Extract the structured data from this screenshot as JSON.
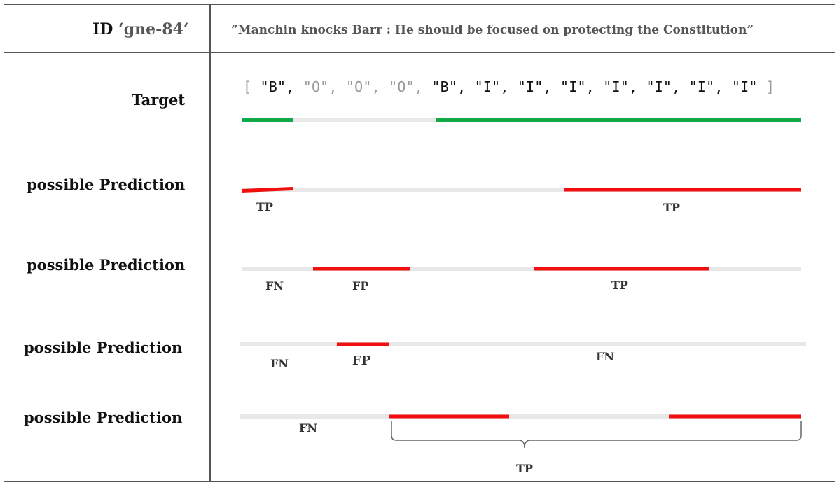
{
  "header": {
    "id_prefix": "ID ",
    "id_value": "‘gne-84‘",
    "sentence": "”Manchin knocks Barr : He should be focused on protecting the Constitution”"
  },
  "rows": {
    "target": {
      "label": "Target"
    },
    "prediction_1": {
      "label": "possible Prediction",
      "tags": [
        "TP",
        "TP"
      ]
    },
    "prediction_2": {
      "label": "possible Prediction",
      "tags": [
        "FN",
        "FP",
        "TP"
      ]
    },
    "prediction_3": {
      "label": "possible Prediction",
      "tags": [
        "FN",
        "FP",
        "FN"
      ]
    },
    "prediction_4": {
      "label": "possible Prediction",
      "tags": [
        "FN",
        "TP"
      ]
    }
  },
  "target_tags": {
    "open": "[ ",
    "close": " ]",
    "items": [
      "\"B\"",
      "\"O\"",
      "\"O\"",
      "\"O\"",
      "\"B\"",
      "\"I\"",
      "\"I\"",
      "\"I\"",
      "\"I\"",
      "\"I\"",
      "\"I\"",
      "\"I\""
    ],
    "highlighted": [
      true,
      false,
      false,
      false,
      true,
      true,
      true,
      true,
      true,
      true,
      true,
      true
    ]
  },
  "colors": {
    "target_line": "#12a84a",
    "prediction_line": "#f10f0f",
    "base_line": "#e8e8e8",
    "brace": "#666666"
  }
}
